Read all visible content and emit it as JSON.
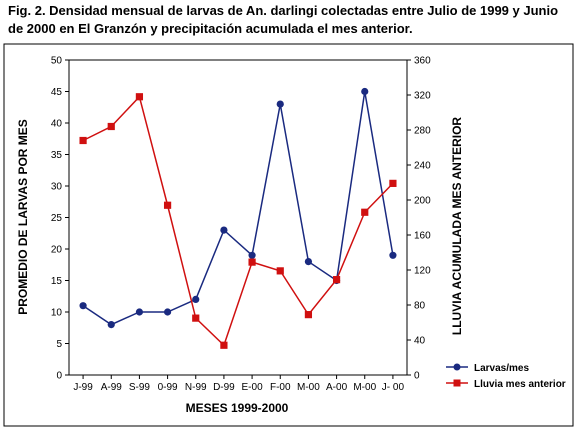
{
  "figure": {
    "title_line1": "Fig. 2. Densidad mensual de larvas de An. darlingi colectadas entre Julio de 1999 y Junio",
    "title_line2": "de 2000 en El Granzón y precipitación acumulada el mes anterior."
  },
  "chart_data": {
    "type": "line",
    "categories": [
      "J-99",
      "A-99",
      "S-99",
      "0-99",
      "N-99",
      "D-99",
      "E-00",
      "F-00",
      "M-00",
      "A-00",
      "M-00",
      "J- 00"
    ],
    "xlabel": "MESES 1999-2000",
    "ylabel": "PROMEDIO DE LARVAS POR MES",
    "y2label": "LLUVIA ACUMULADA MES ANTERIOR",
    "ylim": [
      0,
      50
    ],
    "y2lim": [
      0,
      360
    ],
    "yticks": [
      0,
      5,
      10,
      15,
      20,
      25,
      30,
      35,
      40,
      45,
      50
    ],
    "y2ticks": [
      0,
      40,
      80,
      120,
      160,
      200,
      240,
      280,
      320,
      360
    ],
    "grid": false,
    "legend_position": "bottom-right",
    "series": [
      {
        "name": "Larvas/mes",
        "axis": "left",
        "color": "#1a2a80",
        "marker": "circle",
        "values": [
          11,
          8,
          10,
          10,
          12,
          23,
          19,
          43,
          18,
          15,
          45,
          19
        ]
      },
      {
        "name": "Lluvia mes anterior",
        "axis": "right",
        "color": "#d01010",
        "marker": "square",
        "values": [
          268,
          284,
          318,
          194,
          65,
          34,
          129,
          119,
          69,
          109,
          186,
          219
        ]
      }
    ]
  }
}
